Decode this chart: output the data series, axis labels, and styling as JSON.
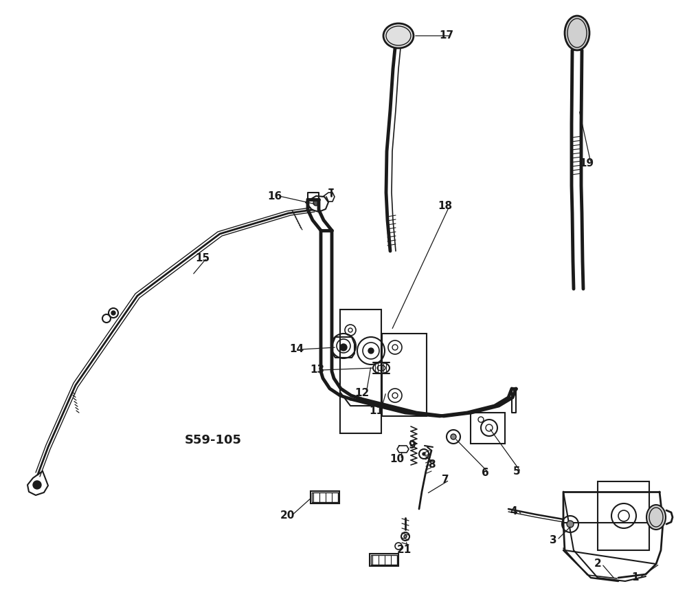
{
  "bg_color": "#ffffff",
  "line_color": "#1a1a1a",
  "label_color": "#1a1a1a",
  "ref_code": "S59-105",
  "figsize": [
    10.0,
    8.84
  ],
  "dpi": 100,
  "xlim": [
    0,
    1000
  ],
  "ylim": [
    0,
    884
  ]
}
